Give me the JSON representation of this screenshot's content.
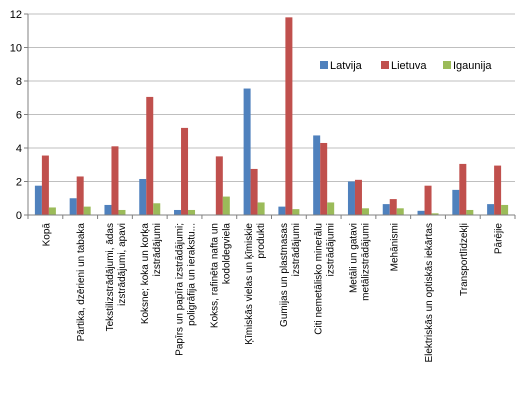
{
  "chart_data": {
    "type": "bar",
    "title": "",
    "xlabel": "",
    "ylabel": "",
    "ylim": [
      0,
      12
    ],
    "y_ticks": [
      0,
      2,
      4,
      6,
      8,
      10,
      12
    ],
    "grid": "horizontal",
    "legend_position": "right",
    "categories": [
      [
        "Kopā"
      ],
      [
        "Pārtika, dzērieni un tabaka"
      ],
      [
        "Tekstilizstrādājumi, ādas",
        "izstrādājumi, apavi"
      ],
      [
        "Koksne; koka un korķa",
        "izstrādājumi"
      ],
      [
        "Papīrs un papīra izstrādājumi;",
        "poligrāfija un ierakstu..."
      ],
      [
        "Kokss, rafinēta nafta un",
        "kodoldegviela"
      ],
      [
        "Ķīmiskās vielas un ķīmiskie",
        "produkti"
      ],
      [
        "Gumijas un plastmasas",
        "izstrādājumi"
      ],
      [
        "Citi nemetālisko minerālu",
        "izstrādājumi"
      ],
      [
        "Metāli un gatavi",
        "metālizstrādājumi"
      ],
      [
        "Mehānismi"
      ],
      [
        "Elektriskās un optiskās iekārtas"
      ],
      [
        "Transportlīdzekļi"
      ],
      [
        "Pārējie"
      ]
    ],
    "series": [
      {
        "name": "Latvija",
        "color": "#4F81BD",
        "values": [
          1.75,
          1.0,
          0.6,
          2.15,
          0.3,
          0.0,
          7.55,
          0.5,
          4.75,
          2.0,
          0.65,
          0.25,
          1.5,
          0.65
        ]
      },
      {
        "name": "Lietuva",
        "color": "#C0504D",
        "values": [
          3.55,
          2.3,
          4.1,
          7.05,
          5.2,
          3.5,
          2.75,
          11.8,
          4.3,
          2.1,
          0.95,
          1.75,
          3.05,
          2.95
        ]
      },
      {
        "name": "Igaunija",
        "color": "#9BBB59",
        "values": [
          0.45,
          0.5,
          0.3,
          0.7,
          0.3,
          1.1,
          0.75,
          0.35,
          0.75,
          0.4,
          0.4,
          0.1,
          0.3,
          0.6
        ]
      }
    ]
  }
}
